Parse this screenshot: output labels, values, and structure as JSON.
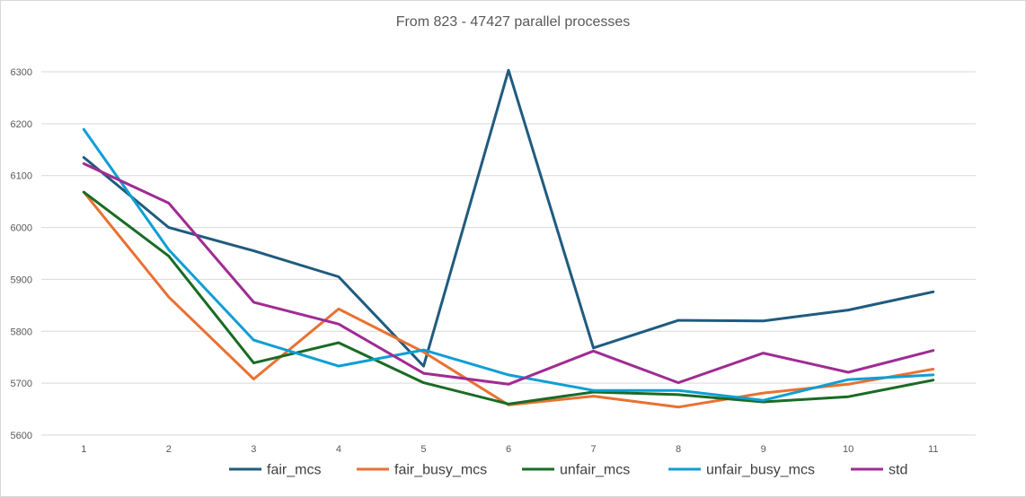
{
  "chart_data": {
    "type": "line",
    "title": "From 823 - 47427 parallel processes",
    "xlabel": "",
    "ylabel": "",
    "x": [
      1,
      2,
      3,
      4,
      5,
      6,
      7,
      8,
      9,
      10,
      11
    ],
    "ylim": [
      5600,
      6300
    ],
    "yticks": [
      5600,
      5700,
      5800,
      5900,
      6000,
      6100,
      6200,
      6300
    ],
    "grid": true,
    "legend": "bottom",
    "series": [
      {
        "name": "fair_mcs",
        "color": "#1f5b7f",
        "values": [
          6135,
          6000,
          5955,
          5905,
          5733,
          6303,
          5768,
          5821,
          5820,
          5841,
          5876
        ]
      },
      {
        "name": "fair_busy_mcs",
        "color": "#e97132",
        "values": [
          6068,
          5866,
          5708,
          5843,
          5760,
          5658,
          5675,
          5654,
          5681,
          5698,
          5727
        ]
      },
      {
        "name": "unfair_mcs",
        "color": "#196b24",
        "values": [
          6068,
          5945,
          5739,
          5778,
          5701,
          5660,
          5683,
          5678,
          5664,
          5674,
          5706
        ]
      },
      {
        "name": "unfair_busy_mcs",
        "color": "#0f9ed5",
        "values": [
          6189,
          5957,
          5783,
          5733,
          5764,
          5716,
          5686,
          5686,
          5667,
          5707,
          5716
        ]
      },
      {
        "name": "std",
        "color": "#a02b93",
        "values": [
          6123,
          6047,
          5856,
          5814,
          5719,
          5698,
          5762,
          5701,
          5758,
          5721,
          5763
        ]
      }
    ]
  }
}
